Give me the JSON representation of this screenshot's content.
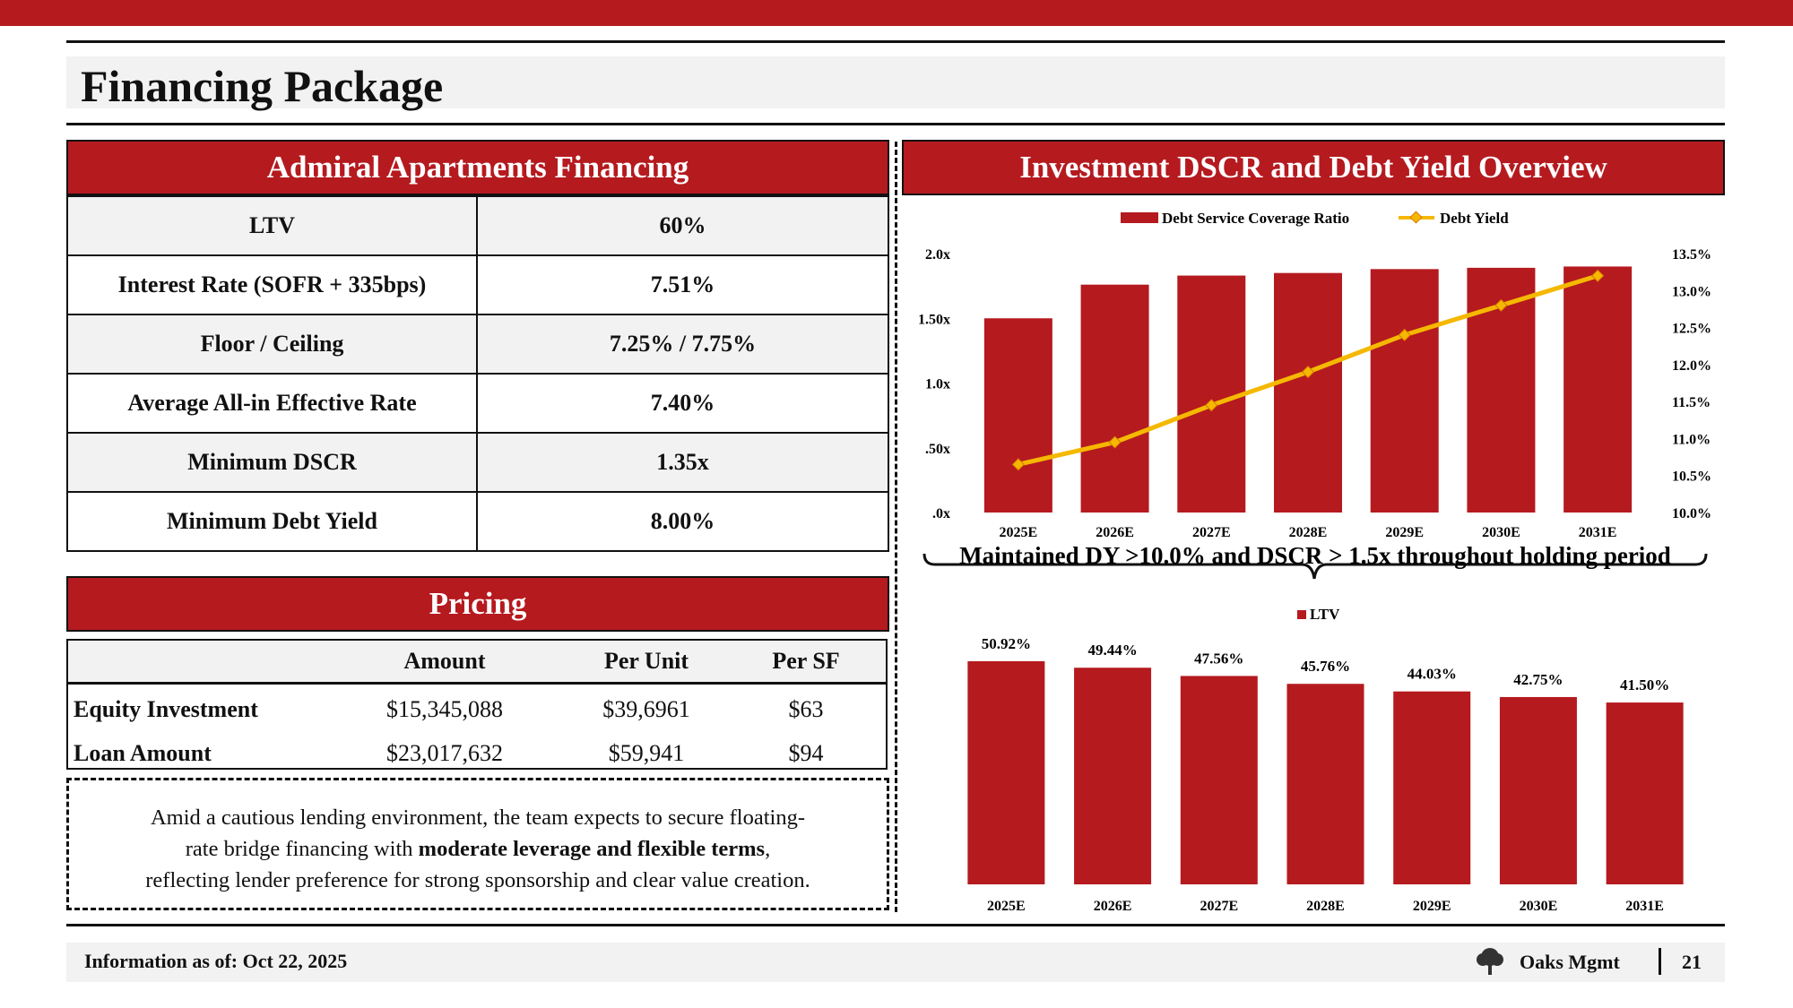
{
  "page_title": "Financing Package",
  "financing": {
    "title": "Admiral Apartments Financing",
    "rows": [
      {
        "label": "LTV",
        "value": "60%"
      },
      {
        "label": "Interest Rate (SOFR + 335bps)",
        "value": "7.51%"
      },
      {
        "label": "Floor / Ceiling",
        "value": "7.25% / 7.75%"
      },
      {
        "label": "Average All-in Effective Rate",
        "value": "7.40%"
      },
      {
        "label": "Minimum DSCR",
        "value": "1.35x"
      },
      {
        "label": "Minimum Debt Yield",
        "value": "8.00%"
      }
    ]
  },
  "pricing": {
    "title": "Pricing",
    "headers": [
      "Amount",
      "Per Unit",
      "Per SF"
    ],
    "rows": [
      {
        "label": "Equity Investment",
        "amount": "$15,345,088",
        "per_unit": "$39,6961",
        "per_sf": "$63"
      },
      {
        "label": "Loan Amount",
        "amount": "$23,017,632",
        "per_unit": "$59,941",
        "per_sf": "$94"
      }
    ]
  },
  "note": {
    "line1": "Amid a cautious lending environment, the team expects to secure floating-",
    "line2_pre": "rate bridge financing with ",
    "line2_bold": "moderate leverage and flexible terms",
    "line2_post": ",",
    "line3": "reflecting lender preference for strong sponsorship and clear value creation."
  },
  "chart_panel_title": "Investment DSCR and Debt Yield Overview",
  "chart_caption": "Maintained DY >10.0% and DSCR > 1.5x throughout holding period",
  "chart_data": [
    {
      "type": "bar",
      "categories": [
        "2025E",
        "2026E",
        "2027E",
        "2028E",
        "2029E",
        "2030E",
        "2031E"
      ],
      "series": [
        {
          "name": "Debt Service Coverage Ratio",
          "type": "bar",
          "axis": "left",
          "values": [
            1.5,
            1.76,
            1.83,
            1.85,
            1.88,
            1.89,
            1.9
          ],
          "color": "#b51a1f"
        },
        {
          "name": "Debt Yield",
          "type": "line",
          "axis": "right",
          "values": [
            10.65,
            10.95,
            11.45,
            11.9,
            12.4,
            12.8,
            13.2
          ],
          "color": "#f5b800"
        }
      ],
      "y_left": {
        "min": 0,
        "max": 2.0,
        "ticks": [
          ".0x",
          ".50x",
          "1.0x",
          "1.50x",
          "2.0x"
        ]
      },
      "y_right": {
        "min": 10.0,
        "max": 13.5,
        "ticks": [
          "10.0%",
          "10.5%",
          "11.0%",
          "11.5%",
          "12.0%",
          "12.5%",
          "13.0%",
          "13.5%"
        ]
      },
      "legend": "top-center"
    },
    {
      "type": "bar",
      "categories": [
        "2025E",
        "2026E",
        "2027E",
        "2028E",
        "2029E",
        "2030E",
        "2031E"
      ],
      "series": [
        {
          "name": "LTV",
          "values": [
            50.92,
            49.44,
            47.56,
            45.76,
            44.03,
            42.75,
            41.5
          ],
          "labels": [
            "50.92%",
            "49.44%",
            "47.56%",
            "45.76%",
            "44.03%",
            "42.75%",
            "41.50%"
          ],
          "color": "#b51a1f"
        }
      ],
      "legend": "top-center"
    }
  ],
  "footer": {
    "date": "Information as of: Oct 22, 2025",
    "brand": "Oaks Mgmt",
    "page": "21"
  }
}
